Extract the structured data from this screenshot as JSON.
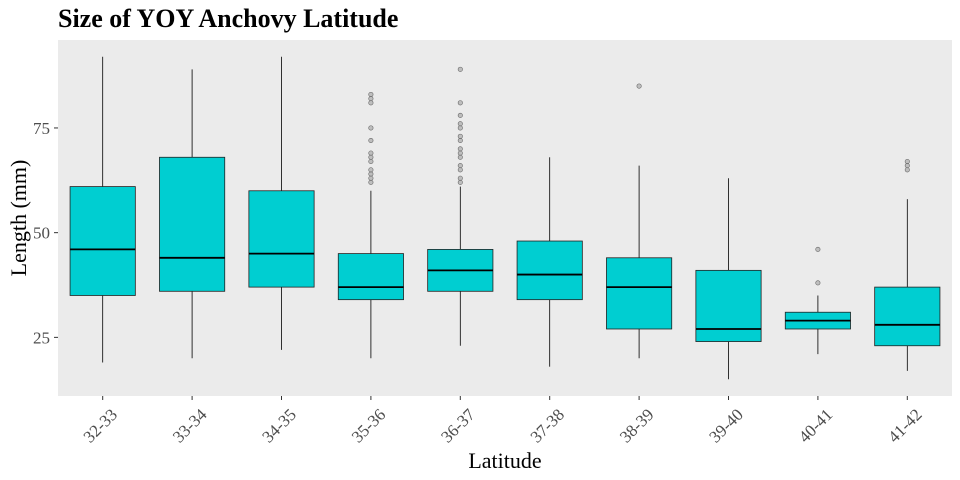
{
  "chart_data": {
    "type": "box",
    "title": "Size of YOY Anchovy Latitude",
    "xlabel": "Latitude",
    "ylabel": "Length (mm)",
    "ylim": [
      11,
      96
    ],
    "yticks": [
      25,
      50,
      75
    ],
    "grid": false,
    "categories": [
      "32-33",
      "33-34",
      "34-35",
      "35-36",
      "36-37",
      "37-38",
      "38-39",
      "39-40",
      "40-41",
      "41-42"
    ],
    "boxes": [
      {
        "min": 19,
        "q1": 35,
        "median": 46,
        "q3": 61,
        "max": 92,
        "outliers": []
      },
      {
        "min": 20,
        "q1": 36,
        "median": 44,
        "q3": 68,
        "max": 89,
        "outliers": []
      },
      {
        "min": 22,
        "q1": 37,
        "median": 45,
        "q3": 60,
        "max": 92,
        "outliers": []
      },
      {
        "min": 20,
        "q1": 34,
        "median": 37,
        "q3": 45,
        "max": 60,
        "outliers": [
          62,
          63,
          64,
          65,
          67,
          68,
          69,
          72,
          75,
          81,
          82,
          83
        ]
      },
      {
        "min": 23,
        "q1": 36,
        "median": 41,
        "q3": 46,
        "max": 61,
        "outliers": [
          62,
          63,
          65,
          66,
          68,
          69,
          70,
          72,
          73,
          75,
          76,
          78,
          81,
          89
        ]
      },
      {
        "min": 18,
        "q1": 34,
        "median": 40,
        "q3": 48,
        "max": 68,
        "outliers": []
      },
      {
        "min": 20,
        "q1": 27,
        "median": 37,
        "q3": 44,
        "max": 66,
        "outliers": [
          85
        ]
      },
      {
        "min": 15,
        "q1": 24,
        "median": 27,
        "q3": 41,
        "max": 63,
        "outliers": []
      },
      {
        "min": 21,
        "q1": 27,
        "median": 29,
        "q3": 31,
        "max": 35,
        "outliers": [
          38,
          46
        ]
      },
      {
        "min": 17,
        "q1": 23,
        "median": 28,
        "q3": 37,
        "max": 58,
        "outliers": [
          65,
          66,
          67
        ]
      }
    ],
    "colors": {
      "box_fill": "#00CED1",
      "panel": "#EBEBEB",
      "line": "#000000",
      "outlier": "#999999"
    }
  }
}
